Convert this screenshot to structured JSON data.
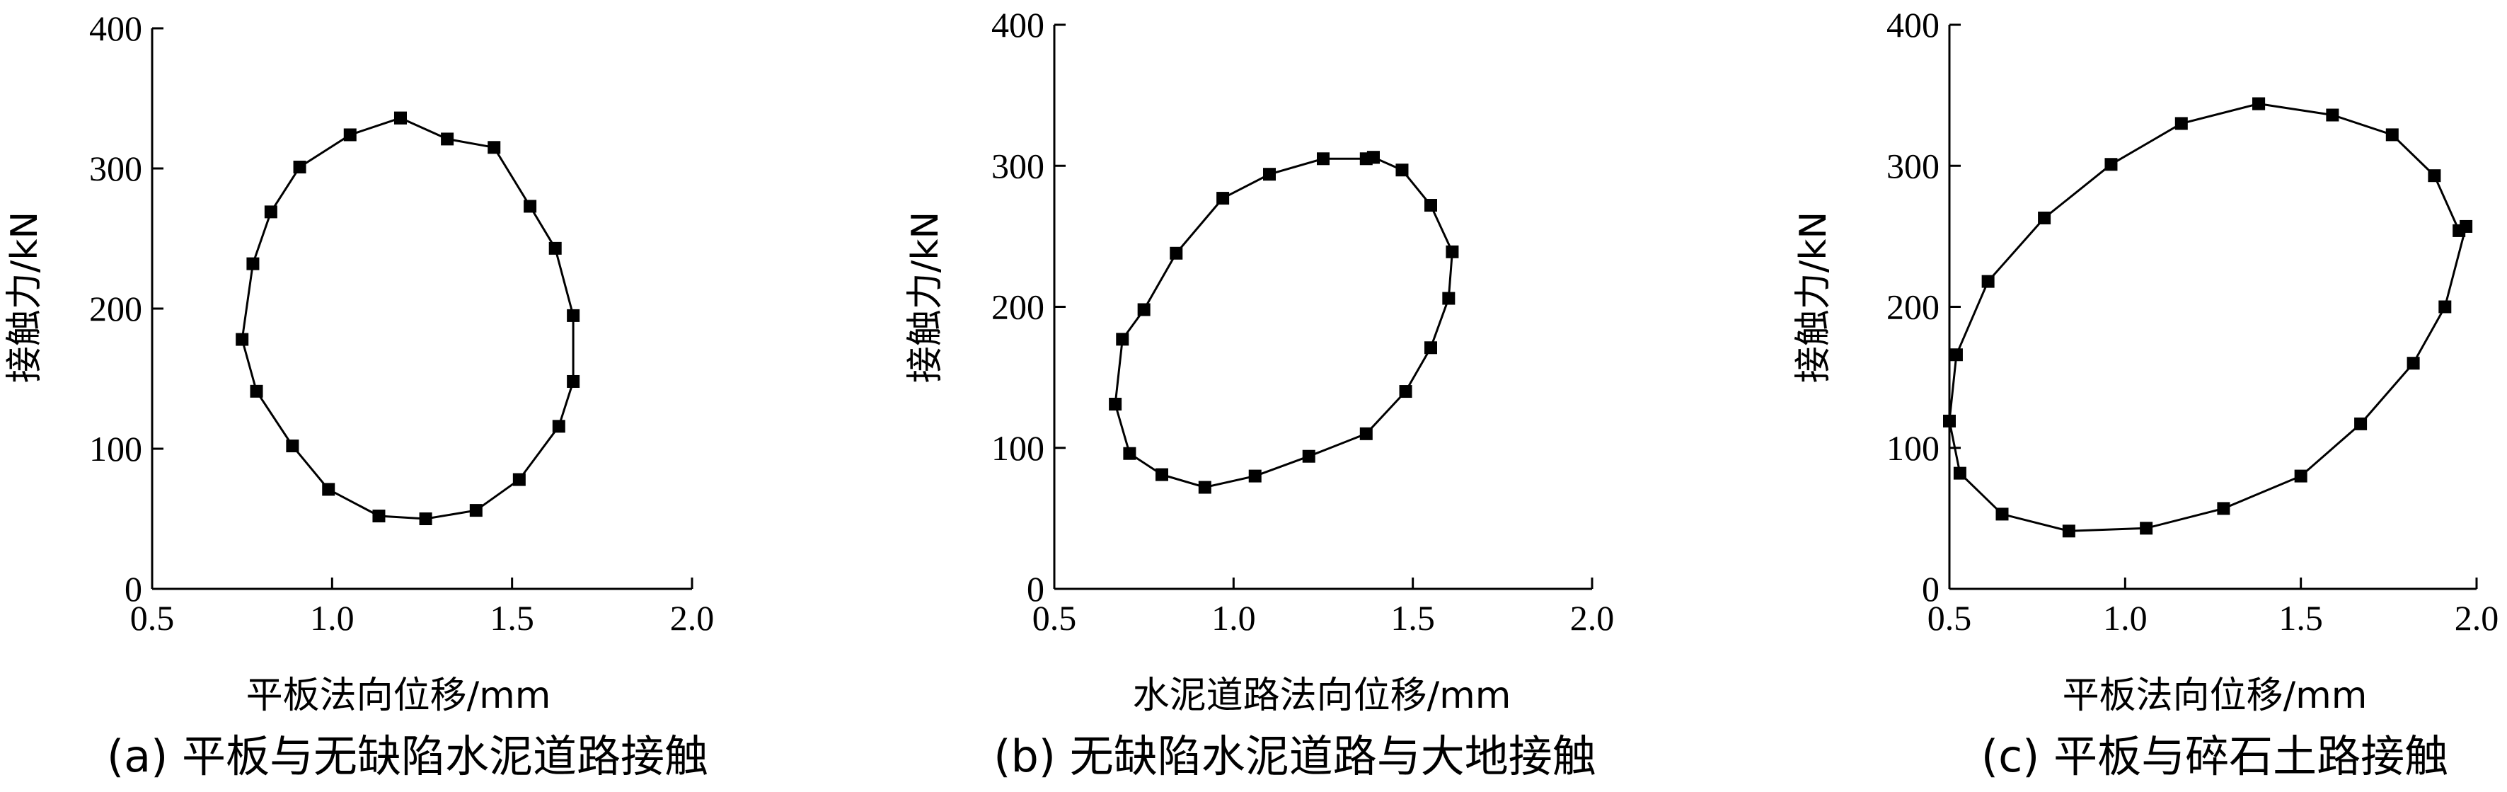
{
  "chart_data": [
    {
      "type": "line",
      "caption": "(a)  平板与无缺陷水泥道路接触",
      "xlabel": "平板法向位移/mm",
      "ylabel": "接触力/kN",
      "xlim": [
        0.5,
        2.0
      ],
      "ylim": [
        0,
        400
      ],
      "xticks": [
        "0.5",
        "1.0",
        "1.5",
        "2.0"
      ],
      "yticks": [
        "0",
        "100",
        "200",
        "300",
        "400"
      ],
      "marker": "square",
      "color": "#000000",
      "series": [
        {
          "x": [
            1.19,
            1.32,
            1.45,
            1.55,
            1.62,
            1.67,
            1.67,
            1.63,
            1.52,
            1.4,
            1.26,
            1.13,
            0.99,
            0.89,
            0.79,
            0.75,
            0.78,
            0.83,
            0.91,
            1.05,
            1.19
          ],
          "y": [
            336,
            321,
            315,
            273,
            243,
            195,
            148,
            116,
            78,
            56,
            50,
            52,
            71,
            102,
            141,
            178,
            232,
            269,
            301,
            324,
            336
          ]
        }
      ]
    },
    {
      "type": "line",
      "caption": "(b)  无缺陷水泥道路与大地接触",
      "xlabel": "水泥道路法向位移/mm",
      "ylabel": "接触力/kN",
      "xlim": [
        0.5,
        2.0
      ],
      "ylim": [
        0,
        400
      ],
      "xticks": [
        "0.5",
        "1.0",
        "1.5",
        "2.0"
      ],
      "yticks": [
        "0",
        "100",
        "200",
        "300",
        "400"
      ],
      "marker": "square",
      "color": "#000000",
      "series": [
        {
          "x": [
            1.39,
            1.47,
            1.55,
            1.61,
            1.6,
            1.55,
            1.48,
            1.37,
            1.21,
            1.06,
            0.92,
            0.8,
            0.71,
            0.67,
            0.69,
            0.75,
            0.84,
            0.97,
            1.1,
            1.25,
            1.37,
            1.39
          ],
          "y": [
            306,
            297,
            272,
            239,
            206,
            171,
            140,
            110,
            94,
            80,
            72,
            81,
            96,
            131,
            177,
            198,
            238,
            277,
            294,
            305,
            305,
            306
          ]
        }
      ]
    },
    {
      "type": "line",
      "caption": "(c)  平板与碎石土路接触",
      "xlabel": "平板法向位移/mm",
      "ylabel": "接触力/kN",
      "xlim": [
        0.5,
        2.0
      ],
      "ylim": [
        0,
        400
      ],
      "xticks": [
        "0.5",
        "1.0",
        "1.5",
        "2.0"
      ],
      "yticks": [
        "0",
        "100",
        "200",
        "300",
        "400"
      ],
      "marker": "square",
      "color": "#000000",
      "series": [
        {
          "x": [
            1.38,
            1.59,
            1.76,
            1.88,
            1.95,
            1.97,
            1.91,
            1.82,
            1.67,
            1.5,
            1.28,
            1.06,
            0.84,
            0.65,
            0.53,
            0.5,
            0.52,
            0.61,
            0.77,
            0.96,
            1.16,
            1.38
          ],
          "y": [
            344,
            336,
            322,
            293,
            254,
            257,
            200,
            160,
            117,
            80,
            57,
            43,
            41,
            53,
            82,
            119,
            166,
            218,
            263,
            301,
            330,
            344
          ]
        }
      ]
    }
  ]
}
